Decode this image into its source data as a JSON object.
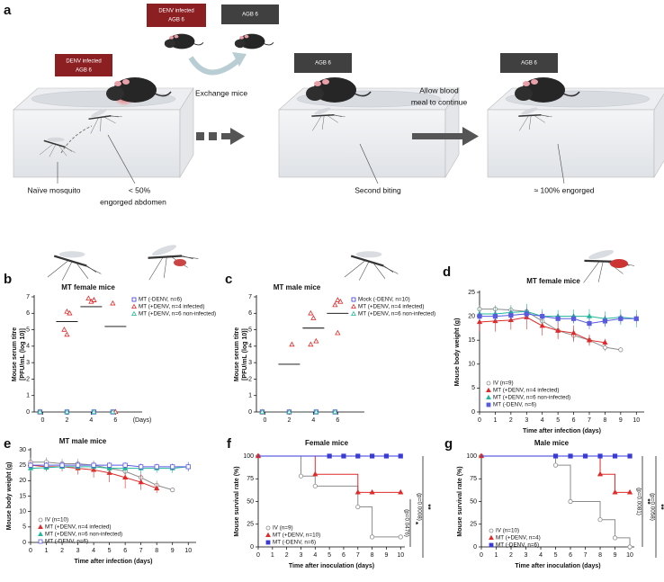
{
  "diagram": {
    "panel": "a",
    "tags": [
      {
        "lines": [
          "DENV infected",
          "AGB 6"
        ]
      },
      {
        "lines": [
          "DENV infected",
          "AGB 6"
        ]
      },
      {
        "lines": [
          "AGB 6"
        ]
      },
      {
        "lines": [
          "AGB 6"
        ]
      },
      {
        "lines": [
          "AGB 6"
        ]
      }
    ],
    "arrows": [
      {
        "lines": [
          "Exchange mice"
        ]
      },
      {
        "lines": [
          "Allow blood",
          "meal to continue"
        ]
      }
    ],
    "captions": [
      {
        "lines": [
          "Naïve mosquito"
        ]
      },
      {
        "lines": [
          "< 50%",
          "engorged abdomen"
        ]
      },
      {
        "lines": [
          "Second biting"
        ]
      },
      {
        "lines": [
          "≈ 100% engorged"
        ]
      }
    ]
  },
  "chart_data": [
    {
      "type": "scatter",
      "panel": "b",
      "title": "MT female mice",
      "ylabel": [
        "Mouse serum titre",
        "[PFU/mL (log 10)]"
      ],
      "xunit": "(Days)",
      "xlim": [
        -0.7,
        8.2
      ],
      "xticks": [
        0,
        2,
        4,
        6
      ],
      "ylim": [
        0,
        7
      ],
      "yticks": [
        0,
        1,
        2,
        3,
        4,
        5,
        6,
        7
      ],
      "series": [
        {
          "name": "MT (-DENV, n=6)",
          "color": "#3a3ad8",
          "marker": "square-open",
          "x": [
            0,
            2,
            4,
            6
          ],
          "values": [
            0,
            0,
            0,
            0
          ]
        },
        {
          "name": "MT (+DENV, n=4 infected)",
          "color": "#e02a2a",
          "marker": "triangle-open",
          "x": [
            0,
            2,
            2,
            2,
            2,
            4,
            4,
            4,
            4,
            6,
            6
          ],
          "values": [
            0,
            6.1,
            6.0,
            5.0,
            4.7,
            6.8,
            6.9,
            6.7,
            6.8,
            6.6,
            0
          ]
        },
        {
          "name": "MT (+DENV, n=6 non-infected)",
          "color": "#22b89a",
          "marker": "triangle-open",
          "x": [
            0,
            2,
            4,
            6
          ],
          "values": [
            0,
            0,
            0,
            0
          ]
        }
      ],
      "means": {
        "x": [
          2,
          4,
          6
        ],
        "values": [
          5.5,
          6.4,
          5.2
        ]
      }
    },
    {
      "type": "scatter",
      "panel": "c",
      "title": "MT male mice",
      "ylabel": [
        "Mouse serum titre",
        "[PFU/mL (log 10)]"
      ],
      "xlim": [
        -0.7,
        8.2
      ],
      "xticks": [
        0,
        2,
        4,
        6
      ],
      "ylim": [
        0,
        7
      ],
      "yticks": [
        0,
        1,
        2,
        3,
        4,
        5,
        6,
        7
      ],
      "series": [
        {
          "name": "Mock (-DENV, n=10)",
          "color": "#3a3ad8",
          "marker": "square-open",
          "x": [
            0,
            2,
            4,
            6
          ],
          "values": [
            0,
            0,
            0,
            0
          ]
        },
        {
          "name": "MT (+DENV, n=4 infected)",
          "color": "#e02a2a",
          "marker": "triangle-open",
          "x": [
            0,
            2,
            2,
            4,
            4,
            4,
            4,
            6,
            6,
            6,
            6
          ],
          "values": [
            0,
            0,
            4.1,
            6.0,
            5.7,
            4.3,
            4.1,
            6.8,
            6.7,
            6.5,
            4.8
          ]
        },
        {
          "name": "MT (+DENV, n=6 non-infected)",
          "color": "#22b89a",
          "marker": "triangle-open",
          "x": [
            0,
            2,
            4,
            6
          ],
          "values": [
            0,
            0,
            0,
            0
          ]
        }
      ],
      "means": {
        "x": [
          2,
          4,
          6
        ],
        "values": [
          2.9,
          5.1,
          6.0
        ]
      }
    },
    {
      "type": "line",
      "panel": "d",
      "title": "MT female mice",
      "ylabel": "Mouse body weight (g)",
      "xlabel": "Time after infection (days)",
      "xlim": [
        0,
        10.5
      ],
      "xticks": [
        0,
        1,
        2,
        3,
        4,
        5,
        6,
        7,
        8,
        9,
        10
      ],
      "ylim": [
        0,
        25
      ],
      "yticks": [
        0,
        5,
        10,
        15,
        20,
        25
      ],
      "series": [
        {
          "name": "IV (n=9)",
          "color": "#8c8c8c",
          "marker": "circle-open",
          "x": [
            0,
            1,
            2,
            3,
            4,
            5,
            6,
            7,
            8,
            9
          ],
          "values": [
            21.5,
            21.5,
            21.3,
            21,
            19,
            17,
            16,
            15,
            13.5,
            13
          ],
          "errors": [
            0.8,
            0.8,
            0.9,
            1,
            1.2,
            1.5,
            1.4,
            1.2,
            0.8,
            0.5
          ]
        },
        {
          "name": "MT (+DENV, n=4 infected)",
          "color": "#e02a2a",
          "marker": "triangle",
          "x": [
            0,
            1,
            2,
            3,
            4,
            5,
            6,
            7,
            8
          ],
          "values": [
            18.8,
            19,
            19.2,
            19.8,
            18,
            17,
            16.5,
            15,
            14.5
          ],
          "errors": [
            2,
            2.2,
            2,
            2.5,
            2,
            1.8,
            1.6,
            1,
            0.8
          ]
        },
        {
          "name": "MT (+DENV, n=6 non-infected)",
          "color": "#22b89a",
          "marker": "triangle",
          "x": [
            0,
            1,
            2,
            3,
            4,
            5,
            6,
            7,
            8,
            9,
            10
          ],
          "values": [
            20.5,
            20.5,
            20.8,
            21,
            20,
            20,
            20,
            20,
            19.5,
            19.8,
            19.5
          ],
          "errors": [
            1.2,
            1.5,
            1.5,
            1.6,
            1.5,
            1.3,
            1.4,
            1.5,
            1.5,
            1.6,
            1.8
          ]
        },
        {
          "name": "MT (-DENV, n=6)",
          "color": "#5a5ae0",
          "marker": "square",
          "x": [
            0,
            1,
            2,
            3,
            4,
            5,
            6,
            7,
            8,
            9,
            10
          ],
          "values": [
            20,
            20,
            20.2,
            20.5,
            20,
            19.5,
            19.5,
            18.5,
            19,
            19.5,
            19.5
          ],
          "errors": [
            1,
            1,
            1.2,
            1.2,
            1,
            1,
            1,
            1.2,
            1.2,
            1,
            1
          ]
        }
      ]
    },
    {
      "type": "line",
      "panel": "e",
      "title": "MT male mice",
      "ylabel": "Mouse body weight (g)",
      "xlabel": "Time after infection (days)",
      "xlim": [
        0,
        10.5
      ],
      "xticks": [
        0,
        1,
        2,
        3,
        4,
        5,
        6,
        7,
        8,
        9,
        10
      ],
      "ylim": [
        0,
        30
      ],
      "yticks": [
        0,
        5,
        10,
        15,
        20,
        25,
        30
      ],
      "series": [
        {
          "name": "IV (n=10)",
          "color": "#8c8c8c",
          "marker": "circle-open",
          "x": [
            0,
            1,
            2,
            3,
            4,
            5,
            6,
            7,
            8,
            9
          ],
          "values": [
            26,
            26,
            25.5,
            25.5,
            25,
            24,
            23,
            21,
            18.5,
            17
          ],
          "errors": [
            1.5,
            1.5,
            1.5,
            1.5,
            1.5,
            1.8,
            2,
            2,
            1.5,
            0.5
          ]
        },
        {
          "name": "MT (+DENV, n=4 infected)",
          "color": "#e02a2a",
          "marker": "triangle",
          "x": [
            0,
            1,
            2,
            3,
            4,
            5,
            6,
            7,
            8
          ],
          "values": [
            25,
            24.5,
            24.5,
            24,
            23.5,
            22.5,
            21,
            19.5,
            17.5
          ],
          "errors": [
            1.5,
            1.5,
            1.5,
            2,
            2.5,
            3,
            3.5,
            2.5,
            1.5
          ]
        },
        {
          "name": "MT (+DENV, n=6 non-infected)",
          "color": "#22b89a",
          "marker": "triangle",
          "x": [
            0,
            1,
            2,
            3,
            4,
            5,
            6,
            7,
            8,
            9,
            10
          ],
          "values": [
            24,
            24.2,
            24.5,
            24.5,
            24.5,
            24,
            24,
            24,
            24,
            24,
            24.5
          ],
          "errors": [
            1,
            1,
            1,
            1,
            1.2,
            1.5,
            1.5,
            1.5,
            1.5,
            1.5,
            1.5
          ]
        },
        {
          "name": "MT (-DENV, n=6)",
          "color": "#5a5ae0",
          "marker": "square-open",
          "x": [
            0,
            1,
            2,
            3,
            4,
            5,
            6,
            7,
            8,
            9,
            10
          ],
          "values": [
            25,
            25,
            25,
            25,
            25,
            25,
            25,
            24.5,
            24.5,
            24.5,
            24.5
          ],
          "errors": [
            1,
            1,
            1,
            1,
            1,
            1,
            1,
            1,
            1,
            1,
            1.5
          ]
        }
      ]
    },
    {
      "type": "step",
      "panel": "f",
      "title": "Female mice",
      "ylabel": "Mouse survival rate (%)",
      "xlabel": "Time after inoculation (days)",
      "xlim": [
        0,
        10.3
      ],
      "xticks": [
        0,
        1,
        2,
        3,
        4,
        5,
        6,
        7,
        8,
        9,
        10
      ],
      "ylim": [
        0,
        100
      ],
      "yticks": [
        0,
        25,
        50,
        75,
        100
      ],
      "series": [
        {
          "name": "IV (n=9)",
          "color": "#8c8c8c",
          "marker": "circle-open",
          "x": [
            0,
            3,
            4,
            7,
            8,
            10
          ],
          "values": [
            100,
            78,
            67,
            44,
            11,
            11
          ]
        },
        {
          "name": "MT (+DENV, n=10)",
          "color": "#e02a2a",
          "marker": "triangle",
          "x": [
            0,
            4,
            7,
            8,
            10
          ],
          "values": [
            100,
            80,
            60,
            60,
            60
          ]
        },
        {
          "name": "MT (-DENV, n=6)",
          "color": "#3a3ad8",
          "marker": "square",
          "x": [
            5,
            6,
            7,
            8,
            9,
            10
          ],
          "values": [
            100,
            100,
            100,
            100,
            100,
            100
          ]
        }
      ],
      "annotations": [
        {
          "stars": "**",
          "p": "(p=0.0008)"
        },
        {
          "stars": "*",
          "p": "(p=0.0476)"
        }
      ]
    },
    {
      "type": "step",
      "panel": "g",
      "title": "Male mice",
      "ylabel": "Mouse survival rate (%)",
      "xlabel": "Time after inoculation (days)",
      "xlim": [
        0,
        10.3
      ],
      "xticks": [
        0,
        1,
        2,
        3,
        4,
        5,
        6,
        7,
        8,
        9,
        10
      ],
      "ylim": [
        0,
        100
      ],
      "yticks": [
        0,
        25,
        50,
        75,
        100
      ],
      "series": [
        {
          "name": "IV (n=10)",
          "color": "#8c8c8c",
          "marker": "circle-open",
          "x": [
            0,
            5,
            6,
            8,
            9,
            10
          ],
          "values": [
            100,
            90,
            50,
            30,
            10,
            0
          ]
        },
        {
          "name": "MT (+DENV, n=4)",
          "color": "#e02a2a",
          "marker": "triangle",
          "x": [
            0,
            8,
            9,
            10
          ],
          "values": [
            100,
            80,
            60,
            60
          ]
        },
        {
          "name": "MT (-DENV, n=6)",
          "color": "#3a3ad8",
          "marker": "square",
          "x": [
            5,
            6,
            7,
            8,
            9,
            10
          ],
          "values": [
            100,
            100,
            100,
            100,
            100,
            100
          ]
        }
      ],
      "annotations": [
        {
          "stars": "**",
          "p": "(p=0.0058)"
        },
        {
          "stars": "**",
          "p": "(p=0.0081)"
        }
      ]
    }
  ]
}
